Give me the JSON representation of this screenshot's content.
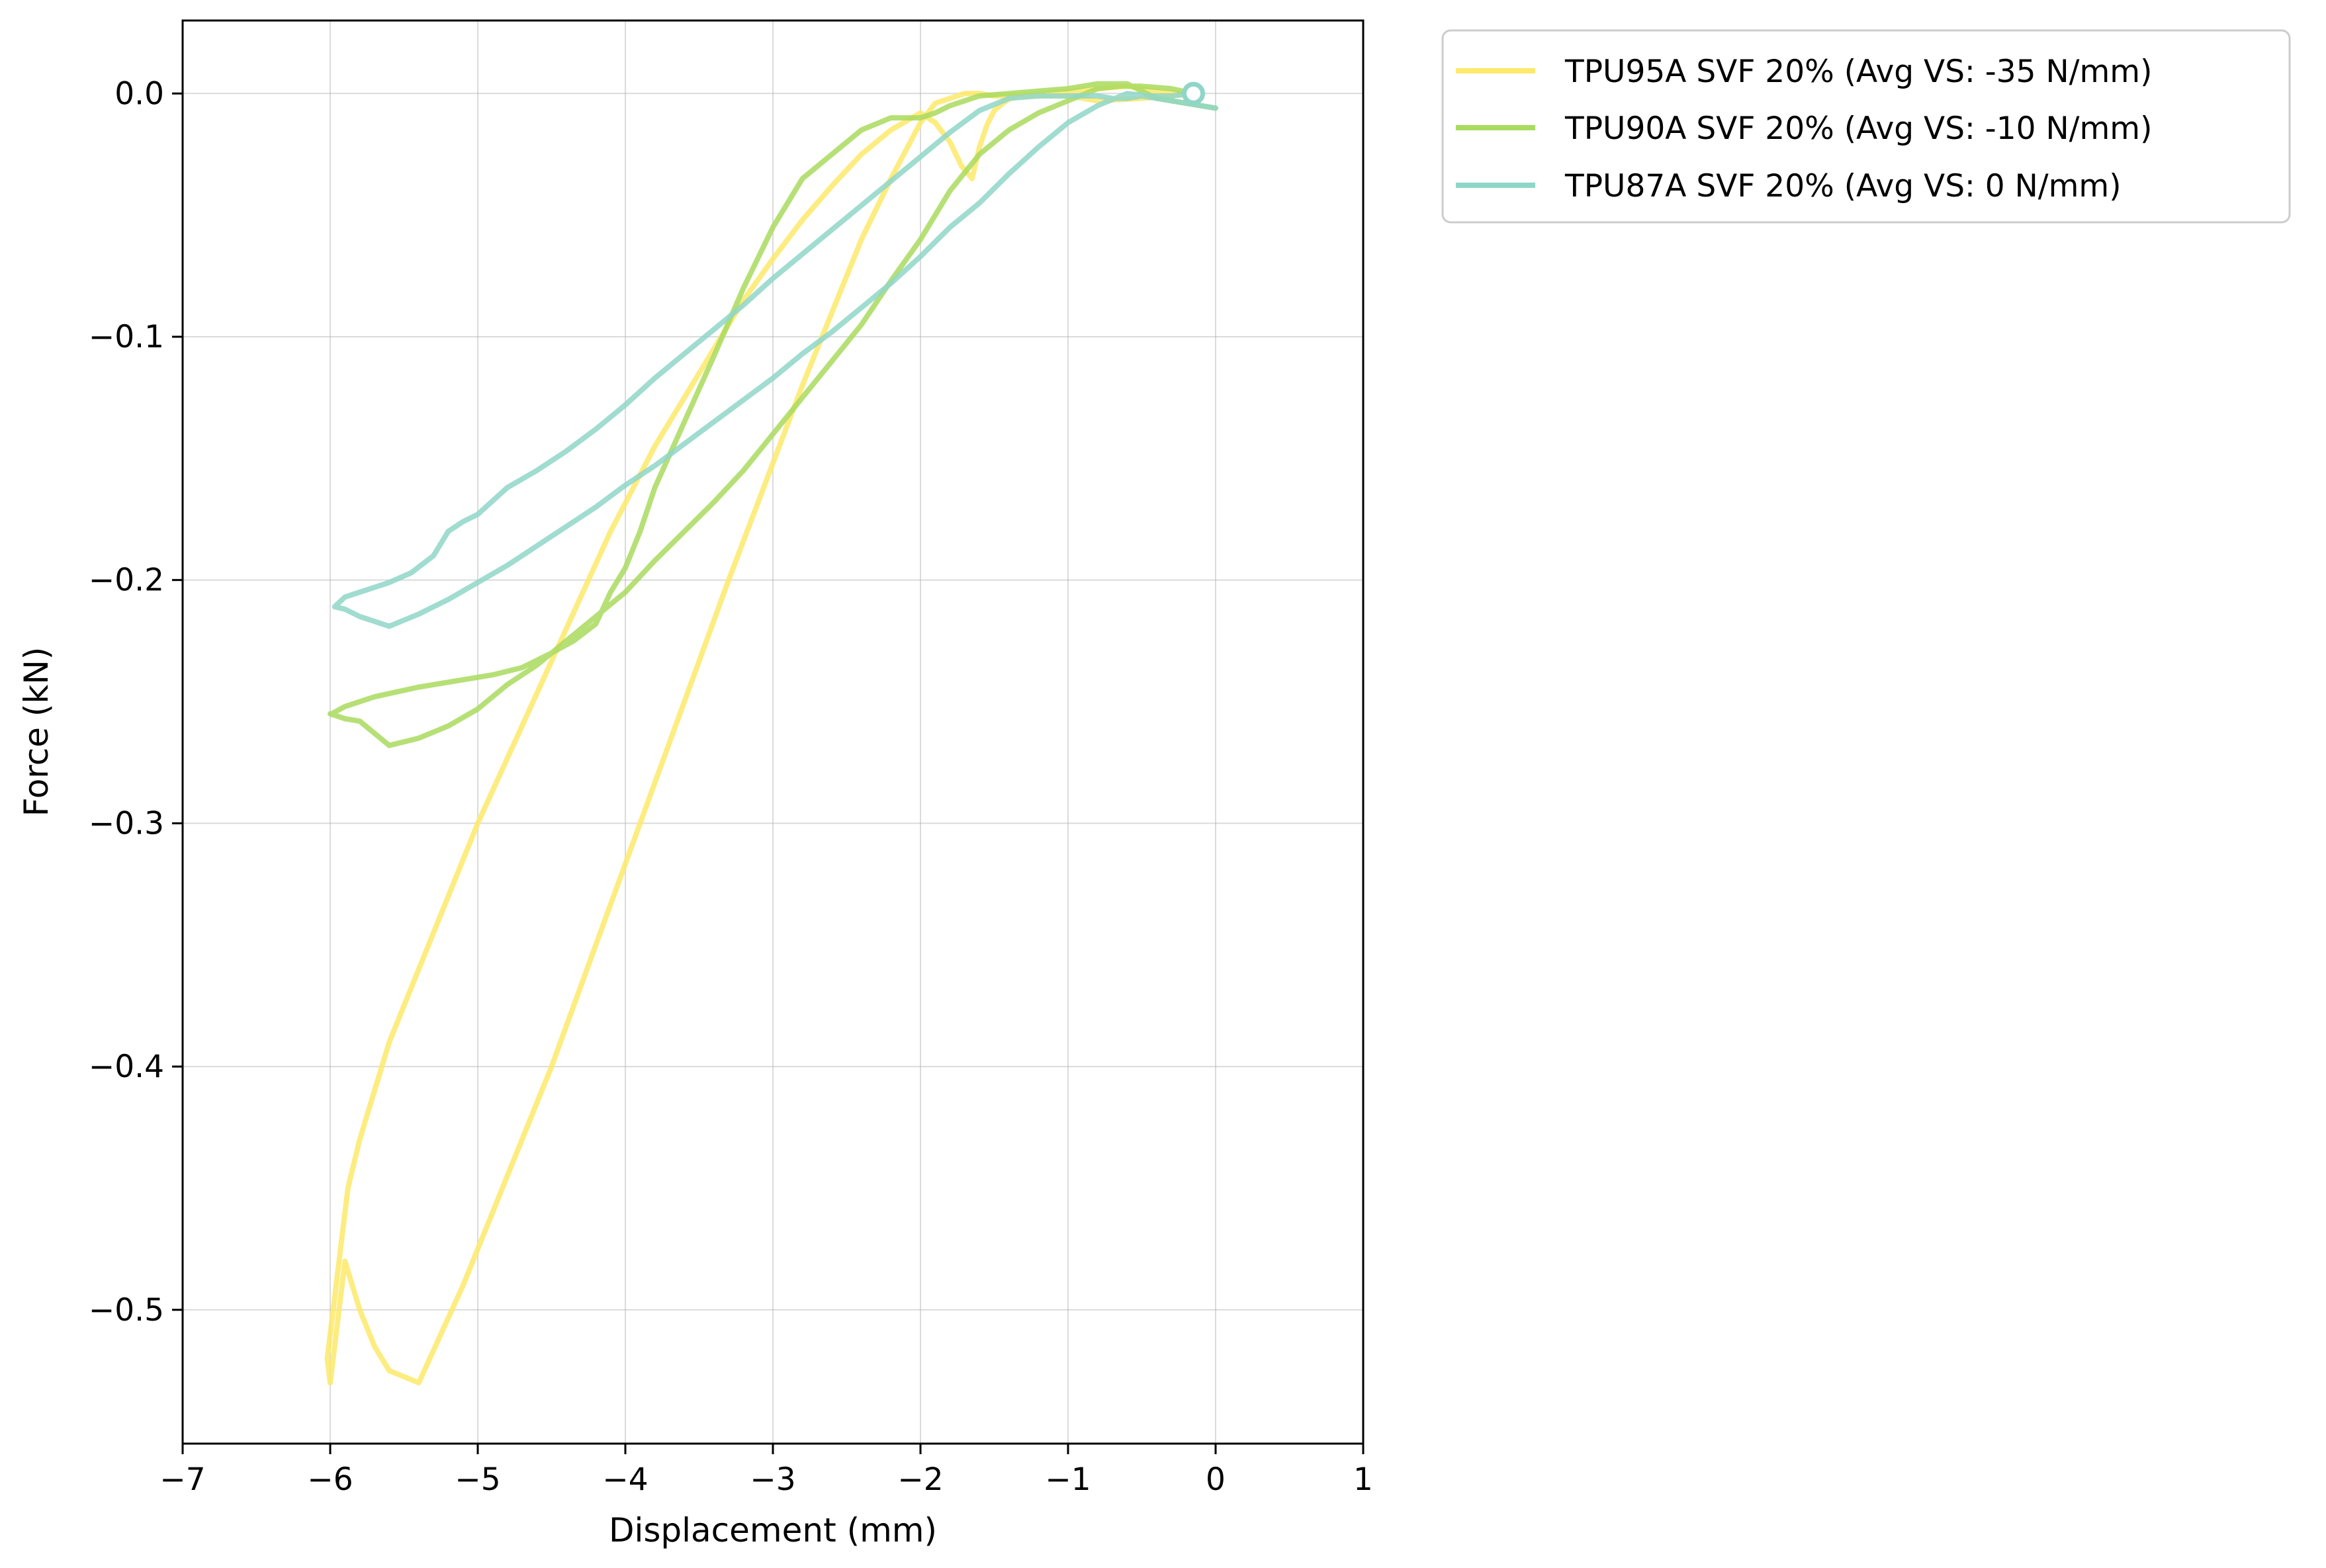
{
  "chart_data": {
    "type": "line",
    "title": "",
    "xlabel": "Displacement (mm)",
    "ylabel": "Force (kN)",
    "xlim": [
      -7,
      1
    ],
    "ylim": [
      -0.555,
      0.03
    ],
    "xticks": [
      -7,
      -6,
      -5,
      -4,
      -3,
      -2,
      -1,
      0,
      1
    ],
    "xtick_labels": [
      "−7",
      "−6",
      "−5",
      "−4",
      "−3",
      "−2",
      "−1",
      "0",
      "1"
    ],
    "yticks": [
      0.0,
      -0.1,
      -0.2,
      -0.3,
      -0.4,
      -0.5
    ],
    "ytick_labels": [
      "0.0",
      "−0.1",
      "−0.2",
      "−0.3",
      "−0.4",
      "−0.5"
    ],
    "grid": true,
    "legend_position": "outside-top-right",
    "series": [
      {
        "name": "TPU95A SVF 20% (Avg VS: -35 N/mm)",
        "color": "#fde96a",
        "x": [
          -0.15,
          -0.3,
          -0.5,
          -0.8,
          -1.0,
          -1.2,
          -1.4,
          -1.5,
          -1.6,
          -1.7,
          -1.8,
          -1.9,
          -2.0,
          -2.2,
          -2.4,
          -2.6,
          -2.8,
          -3.0,
          -3.3,
          -3.6,
          -3.9,
          -4.2,
          -4.5,
          -4.8,
          -5.1,
          -5.4,
          -5.6,
          -5.7,
          -5.8,
          -5.9,
          -6.0,
          -6.02,
          -5.98,
          -5.93,
          -5.88,
          -5.8,
          -5.7,
          -5.6,
          -5.4,
          -5.2,
          -5.0,
          -4.7,
          -4.4,
          -4.1,
          -3.8,
          -3.5,
          -3.2,
          -3.0,
          -2.8,
          -2.6,
          -2.4,
          -2.2,
          -2.0,
          -1.9,
          -1.8,
          -1.72,
          -1.65,
          -1.6,
          -1.55,
          -1.5,
          -1.42,
          -1.35,
          -1.2,
          -1.0,
          -0.8,
          -0.6,
          -0.4,
          -0.25,
          -0.15
        ],
        "y": [
          0.0,
          -0.001,
          -0.002,
          -0.003,
          -0.001,
          -0.001,
          -0.001,
          -0.001,
          0.0,
          0.0,
          -0.002,
          -0.004,
          -0.012,
          -0.035,
          -0.06,
          -0.09,
          -0.12,
          -0.152,
          -0.2,
          -0.25,
          -0.3,
          -0.35,
          -0.4,
          -0.445,
          -0.49,
          -0.53,
          -0.525,
          -0.515,
          -0.5,
          -0.48,
          -0.53,
          -0.52,
          -0.5,
          -0.475,
          -0.45,
          -0.43,
          -0.41,
          -0.39,
          -0.36,
          -0.33,
          -0.3,
          -0.26,
          -0.22,
          -0.18,
          -0.145,
          -0.115,
          -0.085,
          -0.068,
          -0.052,
          -0.038,
          -0.025,
          -0.015,
          -0.008,
          -0.012,
          -0.02,
          -0.03,
          -0.035,
          -0.022,
          -0.013,
          -0.007,
          -0.003,
          -0.001,
          0.0,
          0.001,
          0.002,
          0.003,
          0.001,
          0.0,
          0.0
        ]
      },
      {
        "name": "TPU90A SVF 20% (Avg VS: -10 N/mm)",
        "color": "#a9db5e",
        "x": [
          -0.15,
          -0.3,
          -0.5,
          -0.65,
          -0.8,
          -1.0,
          -1.2,
          -1.4,
          -1.6,
          -1.8,
          -2.0,
          -2.2,
          -2.4,
          -2.6,
          -2.8,
          -3.0,
          -3.2,
          -3.4,
          -3.6,
          -3.8,
          -4.0,
          -4.2,
          -4.4,
          -4.6,
          -4.8,
          -5.0,
          -5.2,
          -5.4,
          -5.6,
          -5.8,
          -5.9,
          -6.0,
          -5.99,
          -5.9,
          -5.7,
          -5.4,
          -5.1,
          -4.9,
          -4.7,
          -4.5,
          -4.35,
          -4.2,
          -4.1,
          -4.0,
          -3.9,
          -3.8,
          -3.6,
          -3.4,
          -3.2,
          -3.0,
          -2.8,
          -2.6,
          -2.4,
          -2.2,
          -2.0,
          -1.9,
          -1.8,
          -1.6,
          -1.4,
          -1.2,
          -1.0,
          -0.8,
          -0.6,
          -0.4,
          -0.2,
          0.0
        ],
        "y": [
          0.0,
          0.002,
          0.003,
          0.003,
          0.002,
          -0.003,
          -0.008,
          -0.015,
          -0.025,
          -0.04,
          -0.06,
          -0.077,
          -0.095,
          -0.11,
          -0.125,
          -0.14,
          -0.155,
          -0.168,
          -0.18,
          -0.192,
          -0.205,
          -0.215,
          -0.225,
          -0.235,
          -0.243,
          -0.253,
          -0.26,
          -0.265,
          -0.268,
          -0.258,
          -0.257,
          -0.255,
          -0.255,
          -0.252,
          -0.248,
          -0.244,
          -0.241,
          -0.239,
          -0.236,
          -0.23,
          -0.225,
          -0.218,
          -0.205,
          -0.195,
          -0.18,
          -0.162,
          -0.135,
          -0.108,
          -0.08,
          -0.055,
          -0.035,
          -0.025,
          -0.015,
          -0.01,
          -0.01,
          -0.008,
          -0.005,
          -0.001,
          0.0,
          0.001,
          0.002,
          0.004,
          0.004,
          -0.002,
          -0.004,
          -0.006
        ]
      },
      {
        "name": "TPU87A SVF 20% (Avg VS: 0 N/mm)",
        "color": "#8fd6c8",
        "x": [
          -0.15,
          -0.3,
          -0.45,
          -0.6,
          -0.8,
          -1.0,
          -1.2,
          -1.4,
          -1.6,
          -1.8,
          -2.0,
          -2.2,
          -2.4,
          -2.6,
          -2.8,
          -3.0,
          -3.2,
          -3.4,
          -3.6,
          -3.8,
          -4.0,
          -4.2,
          -4.4,
          -4.6,
          -4.8,
          -5.0,
          -5.2,
          -5.4,
          -5.6,
          -5.8,
          -5.9,
          -5.97,
          -5.9,
          -5.8,
          -5.6,
          -5.45,
          -5.3,
          -5.2,
          -5.1,
          -5.0,
          -4.8,
          -4.6,
          -4.4,
          -4.2,
          -4.0,
          -3.8,
          -3.6,
          -3.4,
          -3.2,
          -3.0,
          -2.8,
          -2.6,
          -2.4,
          -2.2,
          -2.0,
          -1.8,
          -1.6,
          -1.4,
          -1.2,
          -1.0,
          -0.8,
          -0.7,
          -0.6,
          -0.5,
          -0.4,
          -0.2,
          0.0
        ],
        "y": [
          0.0,
          -0.001,
          -0.001,
          0.0,
          -0.005,
          -0.012,
          -0.022,
          -0.033,
          -0.045,
          -0.055,
          -0.067,
          -0.078,
          -0.088,
          -0.098,
          -0.107,
          -0.117,
          -0.126,
          -0.135,
          -0.144,
          -0.153,
          -0.161,
          -0.17,
          -0.178,
          -0.186,
          -0.194,
          -0.201,
          -0.208,
          -0.214,
          -0.219,
          -0.215,
          -0.212,
          -0.211,
          -0.207,
          -0.205,
          -0.201,
          -0.197,
          -0.19,
          -0.18,
          -0.176,
          -0.173,
          -0.162,
          -0.155,
          -0.147,
          -0.138,
          -0.128,
          -0.117,
          -0.107,
          -0.097,
          -0.087,
          -0.076,
          -0.066,
          -0.056,
          -0.046,
          -0.036,
          -0.026,
          -0.016,
          -0.007,
          -0.002,
          -0.001,
          -0.001,
          -0.001,
          -0.002,
          -0.002,
          -0.001,
          -0.002,
          -0.004,
          -0.006
        ]
      }
    ],
    "marker": {
      "x": -0.15,
      "y": 0.0,
      "color": "#8fd6c8"
    }
  }
}
